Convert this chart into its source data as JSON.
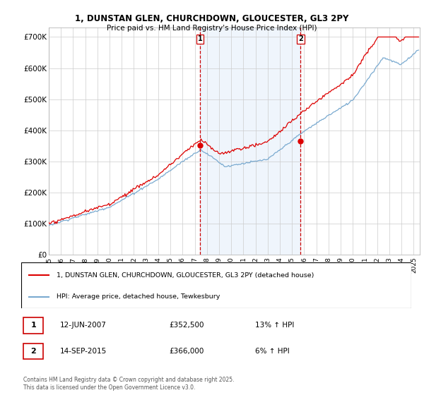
{
  "title_line1": "1, DUNSTAN GLEN, CHURCHDOWN, GLOUCESTER, GL3 2PY",
  "title_line2": "Price paid vs. HM Land Registry's House Price Index (HPI)",
  "ylabel_ticks": [
    "£0",
    "£100K",
    "£200K",
    "£300K",
    "£400K",
    "£500K",
    "£600K",
    "£700K"
  ],
  "ytick_values": [
    0,
    100000,
    200000,
    300000,
    400000,
    500000,
    600000,
    700000
  ],
  "ylim": [
    0,
    730000
  ],
  "xlim_start": 1995.0,
  "xlim_end": 2025.5,
  "sale1_date": 2007.44,
  "sale1_price": 352500,
  "sale2_date": 2015.71,
  "sale2_price": 366000,
  "legend_entries": [
    "1, DUNSTAN GLEN, CHURCHDOWN, GLOUCESTER, GL3 2PY (detached house)",
    "HPI: Average price, detached house, Tewkesbury"
  ],
  "table_rows": [
    [
      "1",
      "12-JUN-2007",
      "£352,500",
      "13% ↑ HPI"
    ],
    [
      "2",
      "14-SEP-2015",
      "£366,000",
      "6% ↑ HPI"
    ]
  ],
  "footnote": "Contains HM Land Registry data © Crown copyright and database right 2025.\nThis data is licensed under the Open Government Licence v3.0.",
  "color_red": "#dd0000",
  "color_blue": "#7aaad0",
  "color_dashed": "#cc0000",
  "bg_color": "#d8e8f8",
  "plot_bg": "#ffffff",
  "grid_color": "#cccccc",
  "fig_width": 6.0,
  "fig_height": 5.6,
  "dpi": 100
}
